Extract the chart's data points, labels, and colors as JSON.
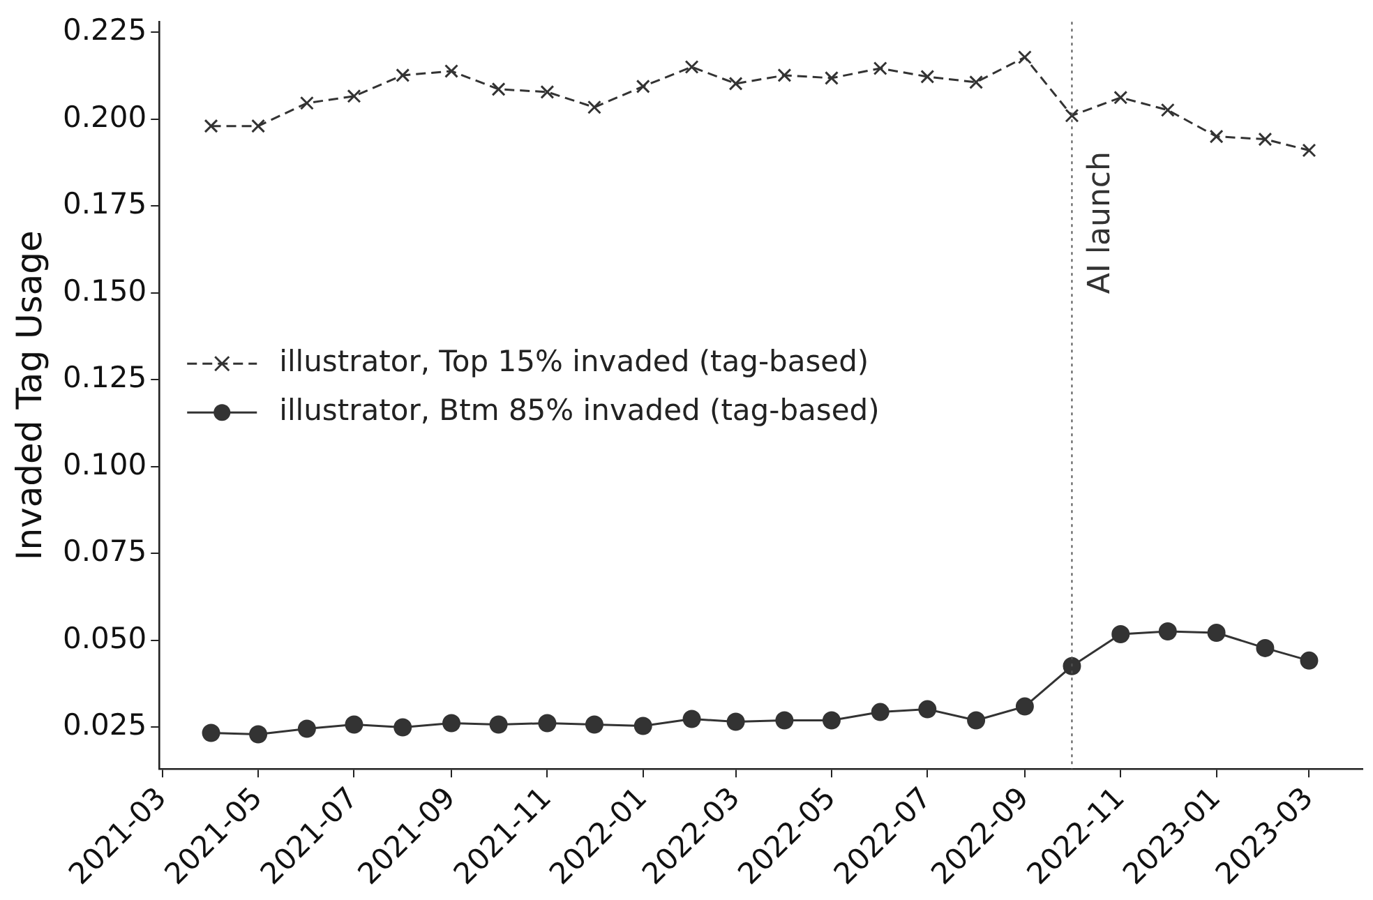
{
  "chart_data": {
    "type": "line",
    "ylabel": "Invaded Tag Usage",
    "x": [
      "2021-04",
      "2021-05",
      "2021-06",
      "2021-07",
      "2021-08",
      "2021-09",
      "2021-10",
      "2021-11",
      "2021-12",
      "2022-01",
      "2022-02",
      "2022-03",
      "2022-04",
      "2022-05",
      "2022-06",
      "2022-07",
      "2022-08",
      "2022-09",
      "2022-10",
      "2022-11",
      "2022-12",
      "2023-01",
      "2023-02",
      "2023-03"
    ],
    "series": [
      {
        "name": "illustrator, Top 15% invaded (tag-based)",
        "color": "#333333",
        "marker": "cross",
        "line_style": "dashed",
        "values": [
          0.198,
          0.198,
          0.2046,
          0.2066,
          0.2126,
          0.2138,
          0.2086,
          0.2078,
          0.2034,
          0.2094,
          0.215,
          0.2102,
          0.2126,
          0.2118,
          0.2146,
          0.2122,
          0.2106,
          0.2178,
          0.201,
          0.2062,
          0.2026,
          0.195,
          0.1942,
          0.191
        ]
      },
      {
        "name": "illustrator, Btm 85% invaded (tag-based)",
        "color": "#333333",
        "marker": "circle",
        "line_style": "solid",
        "values": [
          0.0234,
          0.023,
          0.0246,
          0.0258,
          0.025,
          0.0262,
          0.0258,
          0.0262,
          0.0258,
          0.0254,
          0.0274,
          0.0266,
          0.027,
          0.027,
          0.0294,
          0.0302,
          0.027,
          0.031,
          0.0426,
          0.0518,
          0.0526,
          0.0522,
          0.0478,
          0.0442
        ]
      }
    ],
    "xlim": [
      "2021-02-27",
      "2023-04-04"
    ],
    "xticks": [
      "2021-03",
      "2021-05",
      "2021-07",
      "2021-09",
      "2021-11",
      "2022-01",
      "2022-03",
      "2022-05",
      "2022-07",
      "2022-09",
      "2022-11",
      "2023-01",
      "2023-03"
    ],
    "ylim": [
      0.013,
      0.228
    ],
    "yticks": [
      0.025,
      {
        "value": 0.05,
        "label": "0.050"
      },
      0.075,
      {
        "value": 0.1,
        "label": "0.100"
      },
      0.125,
      {
        "value": 0.15,
        "label": "0.150"
      },
      0.175,
      {
        "value": 0.2,
        "label": "0.200"
      },
      0.225
    ],
    "ref_lines": [
      {
        "axis": "x",
        "value": "2022-10-01",
        "label": "AI launch",
        "color": "#555555",
        "line_style": "dotted"
      }
    ],
    "legend": "center left",
    "grid": false
  }
}
